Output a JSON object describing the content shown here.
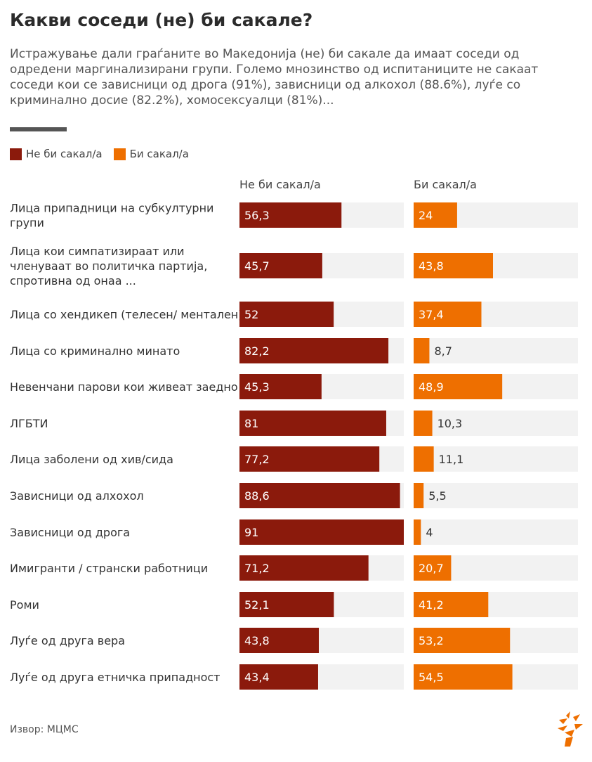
{
  "header": {
    "title": "Какви соседи (не) би сакале?",
    "subtitle": "Истражување дали граѓаните во Македонија (не) би сакале да имаат соседи од одредени маргинализирани групи. Големо мнозинство од испитаниците не сакаат соседи кои се зависници од дрога (91%), зависници од алкохол (88.6%), луѓе со криминално досие (82.2%), хомосексуалци (81%)..."
  },
  "legend": {
    "items": [
      {
        "label": "Не би сакал/а",
        "color": "#8b1a0c"
      },
      {
        "label": "Би сакал/а",
        "color": "#ee6f00"
      }
    ]
  },
  "columns": {
    "left_header": "Не би сакал/а",
    "right_header": "Би сакал/а"
  },
  "chart_data": {
    "type": "bar",
    "categories": [
      [
        "Лица припадници на субкултурни",
        "групи"
      ],
      [
        "Лица кои симпатизираат или",
        "членуваат во политичка партија,",
        "спротивна од онаа ..."
      ],
      [
        "Лица со хендикеп (телесен/ ментален)"
      ],
      [
        "Лица со криминално минато"
      ],
      [
        "Невенчани парови кои живеат заедно"
      ],
      [
        "ЛГБТИ"
      ],
      [
        "Лица заболени од хив/сида"
      ],
      [
        "Зависници од алхохол"
      ],
      [
        "Зависници од дрога"
      ],
      [
        "Имигранти / странски работници"
      ],
      [
        "Роми"
      ],
      [
        "Луѓе од друга вера"
      ],
      [
        "Луѓе од друга етничка припадност"
      ]
    ],
    "series": [
      {
        "name": "Не би сакал/а",
        "color": "#8b1a0c",
        "values": [
          56.3,
          45.7,
          52,
          82.2,
          45.3,
          81,
          77.2,
          88.6,
          91,
          71.2,
          52.1,
          43.8,
          43.4
        ],
        "labels": [
          "56,3",
          "45,7",
          "52",
          "82,2",
          "45,3",
          "81",
          "77,2",
          "88,6",
          "91",
          "71,2",
          "52,1",
          "43,8",
          "43,4"
        ]
      },
      {
        "name": "Би сакал/а",
        "color": "#ee6f00",
        "values": [
          24,
          43.8,
          37.4,
          8.7,
          48.9,
          10.3,
          11.1,
          5.5,
          4,
          20.7,
          41.2,
          53.2,
          54.5
        ],
        "labels": [
          "24",
          "43,8",
          "37,4",
          "8,7",
          "48,9",
          "10,3",
          "11,1",
          "5,5",
          "4",
          "20,7",
          "41,2",
          "53,2",
          "54,5"
        ]
      }
    ],
    "ylim": [
      0,
      100
    ],
    "track_color": "#f2f2f2"
  },
  "footer": {
    "source": "Извор: МЦМС"
  }
}
